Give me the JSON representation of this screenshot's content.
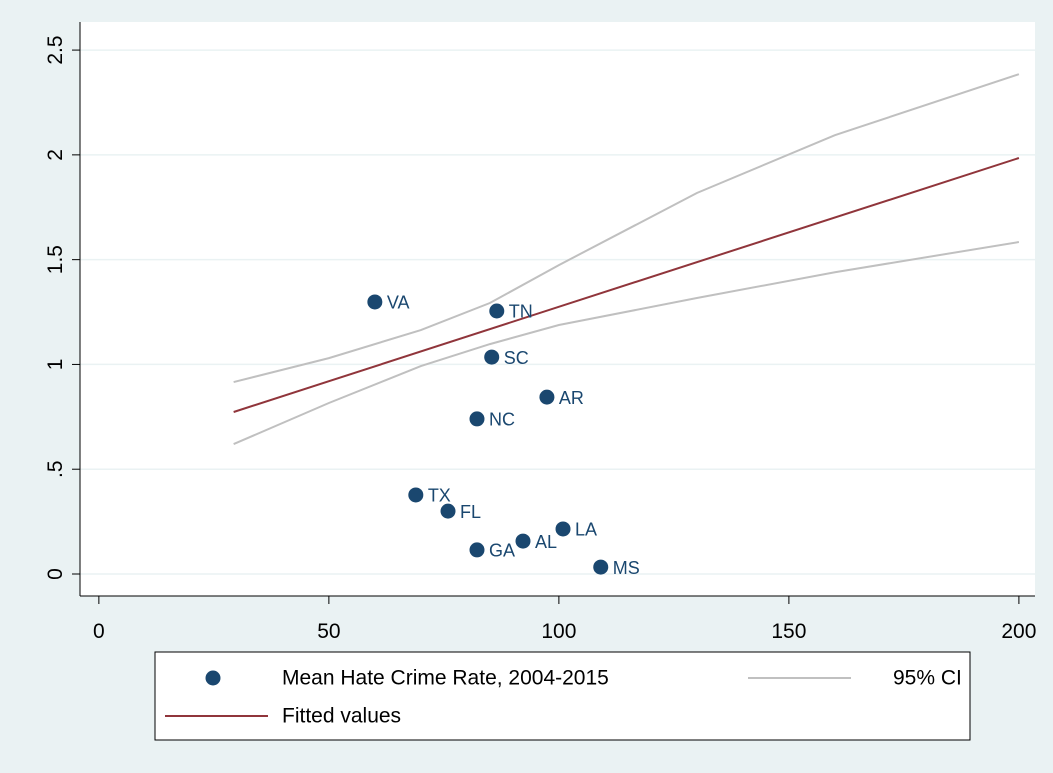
{
  "chart_data": {
    "type": "scatter",
    "xlim": [
      -4.1,
      203.5
    ],
    "ylim": [
      -0.105,
      2.634
    ],
    "xticks": [
      0,
      50,
      100,
      150,
      200
    ],
    "yticks": [
      0,
      {
        "value": 0.5,
        "label": ".5"
      },
      1,
      1.5,
      2,
      2.5
    ],
    "grid": true,
    "series": [
      {
        "name": "Mean Hate Crime Rate, 2004-2015",
        "color": "#1a476f",
        "labels": [
          "VA",
          "TN",
          "SC",
          "AR",
          "NC",
          "TX",
          "FL",
          "LA",
          "AL",
          "GA",
          "MS"
        ],
        "x": [
          60.0,
          86.5,
          85.4,
          97.4,
          82.2,
          68.9,
          75.9,
          100.9,
          92.2,
          82.2,
          109.1
        ],
        "y": [
          1.298,
          1.255,
          1.035,
          0.844,
          0.74,
          0.377,
          0.3,
          0.215,
          0.157,
          0.115,
          0.033
        ]
      },
      {
        "name": "Fitted values",
        "color": "#90353b",
        "x": [
          29.3,
          200
        ],
        "y": [
          0.773,
          1.985
        ]
      },
      {
        "name": "95% CI",
        "color": "#c0c0c0",
        "x": [
          29.3,
          50,
          70,
          85,
          100,
          130,
          160,
          200
        ],
        "upper": [
          0.916,
          1.03,
          1.164,
          1.293,
          1.474,
          1.818,
          2.094,
          2.385
        ],
        "lower": [
          0.62,
          0.816,
          0.992,
          1.097,
          1.188,
          1.317,
          1.44,
          1.584
        ]
      }
    ]
  }
}
